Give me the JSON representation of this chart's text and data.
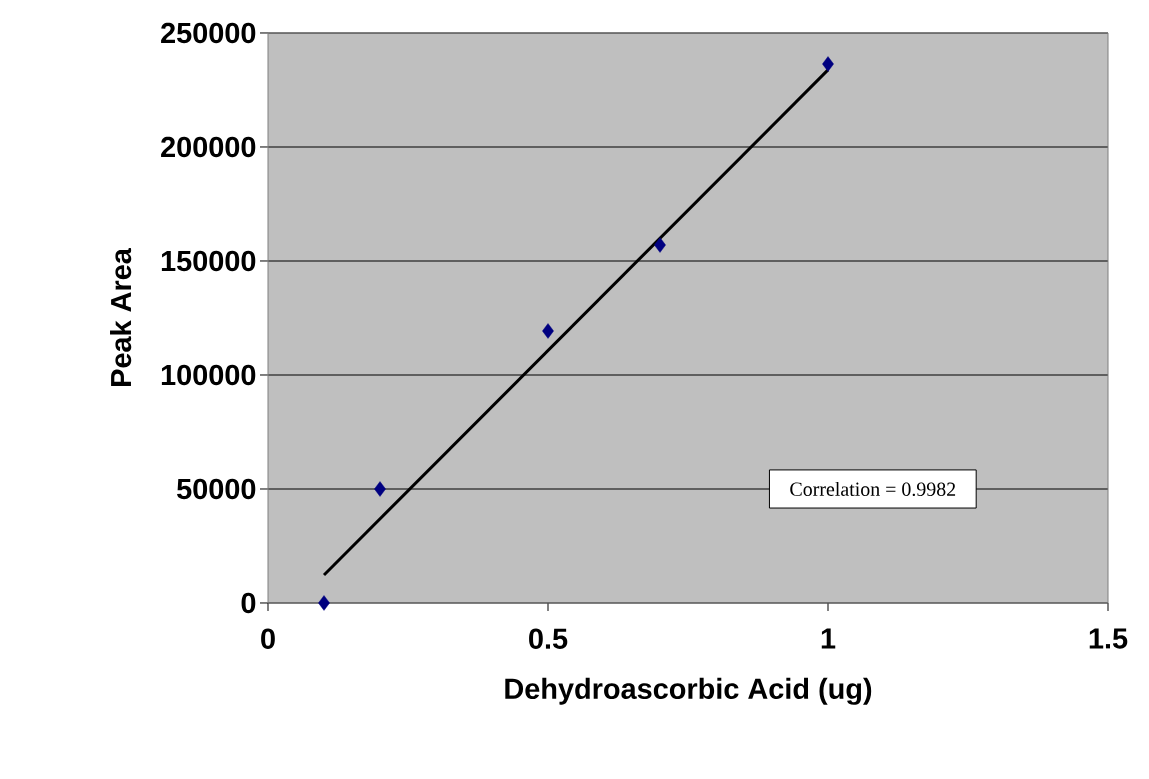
{
  "chart_data": {
    "type": "scatter",
    "xlabel": "Dehydroascorbic Acid (ug)",
    "ylabel": "Peak Area",
    "x": [
      0.1,
      0.2,
      0.5,
      0.7,
      1.0
    ],
    "series": [
      {
        "color": "#000080",
        "marker": "diamond",
        "values": [
          0,
          50000,
          119300,
          157000,
          236400
        ]
      },
      {
        "type": "line",
        "color": "#000000",
        "marker": "none",
        "line_style": "solid",
        "x": [
          0.1,
          1.0
        ],
        "values": [
          12300,
          233800
        ]
      }
    ],
    "xlim": [
      0,
      1.5
    ],
    "ylim": [
      0,
      250000
    ],
    "xticks": [
      0,
      0.5,
      1,
      1.5
    ],
    "yticks": [
      0,
      50000,
      100000,
      150000,
      200000,
      250000
    ],
    "grid": "y",
    "annotations": [
      "Correlation = 0.9982"
    ]
  }
}
